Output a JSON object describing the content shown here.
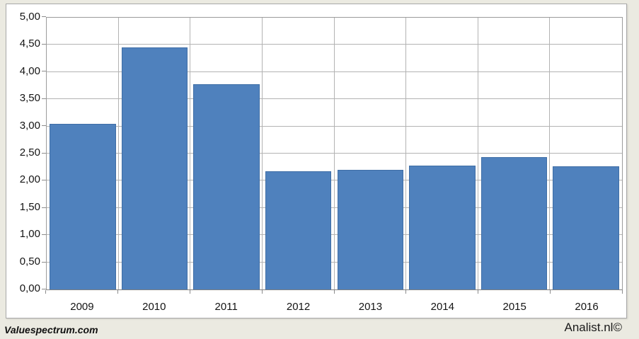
{
  "chart_data": {
    "type": "bar",
    "title": "",
    "xlabel": "",
    "ylabel": "",
    "categories": [
      "2009",
      "2010",
      "2011",
      "2012",
      "2013",
      "2014",
      "2015",
      "2016"
    ],
    "values": [
      3.05,
      4.45,
      3.78,
      2.18,
      2.2,
      2.28,
      2.44,
      2.26
    ],
    "ylim": [
      0,
      5
    ],
    "ytick_step": 0.5,
    "ytick_labels_top_to_bottom": [
      "5,00",
      "4,50",
      "4,00",
      "3,50",
      "3,00",
      "2,50",
      "2,00",
      "1,50",
      "1,00",
      "0,50",
      "0,00"
    ],
    "grid": true,
    "grid_vertical": true,
    "legend": false,
    "bar_color": "#4F81BD"
  },
  "footer": {
    "left_watermark": "Valuespectrum.com",
    "right_watermark": "Analist.nl©"
  },
  "colors": {
    "page_background": "#EBEAE1",
    "chart_background": "#FFFFFF",
    "gridline": "#B3B3B3",
    "plot_border": "#9B9B9B",
    "bar": "#4F81BD",
    "text": "#141414"
  }
}
